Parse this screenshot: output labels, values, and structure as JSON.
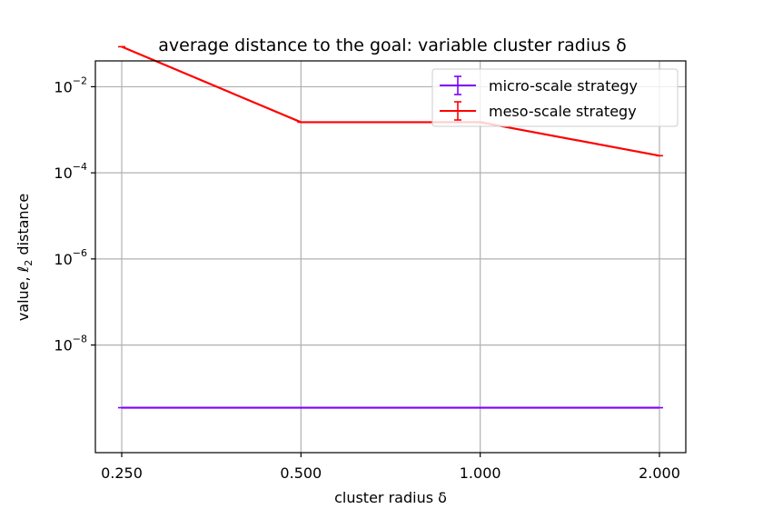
{
  "chart_data": {
    "type": "line",
    "title": "average distance to the goal: variable cluster radius δ",
    "xlabel": "cluster radius δ",
    "ylabel_prefix": "value, ℓ",
    "ylabel_sub": "2",
    "ylabel_suffix": " distance",
    "x": [
      "0.250",
      "0.500",
      "1.000",
      "2.000"
    ],
    "y_scale": "log",
    "ylim_exp": [
      -10.5,
      -1.4
    ],
    "y_ticks": [
      {
        "base": "10",
        "exp": "−2",
        "value_exp": -2
      },
      {
        "base": "10",
        "exp": "−4",
        "value_exp": -4
      },
      {
        "base": "10",
        "exp": "−6",
        "value_exp": -6
      },
      {
        "base": "10",
        "exp": "−8",
        "value_exp": -8
      }
    ],
    "grid": true,
    "legend_position": "top-right",
    "series": [
      {
        "name": "micro-scale strategy",
        "color": "#7f00ff",
        "values": [
          3.5e-10,
          3.5e-10,
          3.5e-10,
          3.5e-10
        ]
      },
      {
        "name": "meso-scale strategy",
        "color": "#ff0000",
        "values": [
          0.085,
          0.0015,
          0.0015,
          0.00025
        ]
      }
    ]
  }
}
